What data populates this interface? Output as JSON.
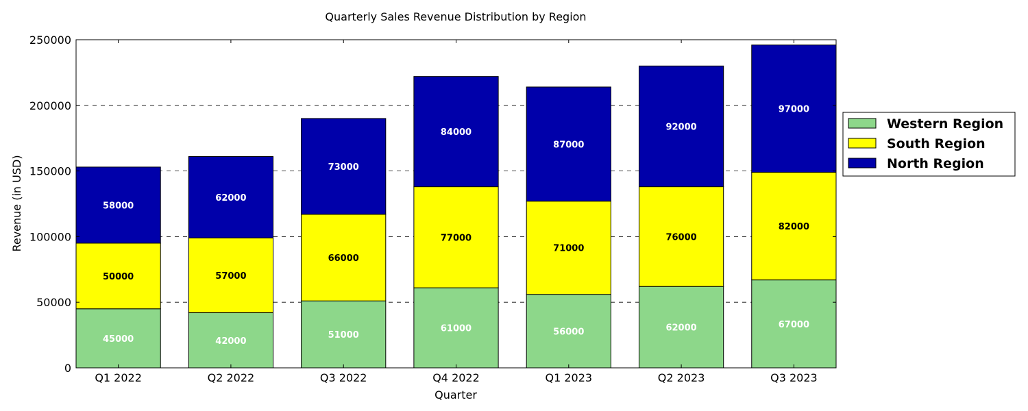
{
  "chart_data": {
    "type": "bar",
    "stacked": true,
    "title": "Quarterly Sales Revenue Distribution by Region",
    "xlabel": "Quarter",
    "ylabel": "Revenue (in USD)",
    "ylim": [
      0,
      250000
    ],
    "yticks": [
      0,
      50000,
      100000,
      150000,
      200000,
      250000
    ],
    "grid": "y-dashed",
    "legend_position": "right",
    "categories": [
      "Q1 2022",
      "Q2 2022",
      "Q3 2022",
      "Q4 2022",
      "Q1 2023",
      "Q2 2023",
      "Q3 2023"
    ],
    "series": [
      {
        "name": "Western Region",
        "color": "#8dd78a",
        "label_color": "#ffffff",
        "values": [
          45000,
          42000,
          51000,
          61000,
          56000,
          62000,
          67000
        ]
      },
      {
        "name": "South Region",
        "color": "#ffff00",
        "label_color": "#000000",
        "values": [
          50000,
          57000,
          66000,
          77000,
          71000,
          76000,
          82000
        ]
      },
      {
        "name": "North Region",
        "color": "#0000aa",
        "label_color": "#ffffff",
        "values": [
          58000,
          62000,
          73000,
          84000,
          87000,
          92000,
          97000
        ]
      }
    ]
  }
}
